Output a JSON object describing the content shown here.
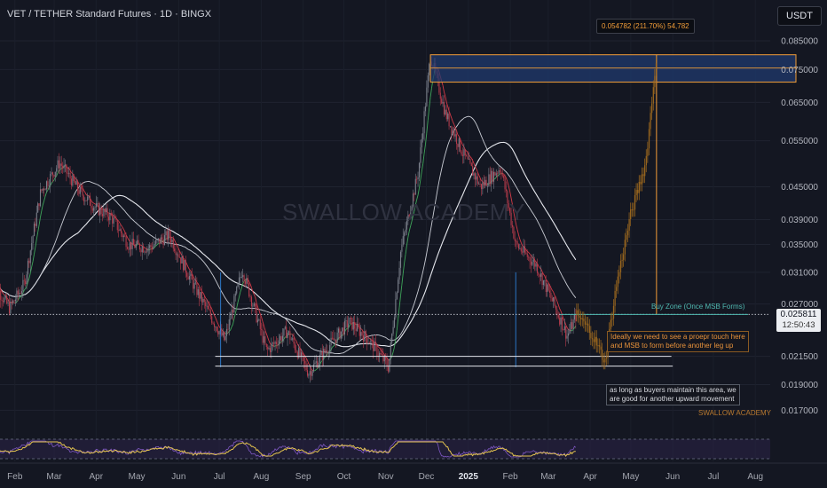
{
  "header": {
    "title": "VET / TETHER Standard Futures · 1D · BINGX",
    "currency": "USDT"
  },
  "colors": {
    "background": "#141722",
    "up_candle": "#7a7f8a",
    "down_candle": "#b53b4b",
    "ma_white": "#e6e8ee",
    "ma_red": "#d23a47",
    "ma_green": "#3fa55a",
    "projection": "#a06a1e",
    "target_zone": "#1f3a6e",
    "accent_orange": "#f29d38",
    "buy_zone": "#4fb8b0"
  },
  "chart_data": {
    "type": "candlestick",
    "symbol": "VET / TETHER Standard Futures",
    "timeframe": "1D",
    "exchange": "BINGX",
    "scale": "log",
    "yticks": [
      0.085,
      0.075,
      0.065,
      0.055,
      0.045,
      0.039,
      0.035,
      0.031,
      0.027,
      0.0215,
      0.019,
      0.017
    ],
    "ytick_labels": [
      "0.085000",
      "0.075000",
      "0.065000",
      "0.055000",
      "0.045000",
      "0.039000",
      "0.035000",
      "0.031000",
      "0.027000",
      "0.021500",
      "0.019000",
      "0.017000"
    ],
    "xticks": [
      "Feb",
      "Mar",
      "Apr",
      "May",
      "Jun",
      "Jul",
      "Aug",
      "Sep",
      "Oct",
      "Nov",
      "Dec",
      "2025",
      "Feb",
      "Mar",
      "Apr",
      "May",
      "Jun",
      "Jul",
      "Aug"
    ],
    "price_path": [
      {
        "x": "2024-01-15",
        "y": 0.03
      },
      {
        "x": "2024-01-28",
        "y": 0.0265
      },
      {
        "x": "2024-02-08",
        "y": 0.0295
      },
      {
        "x": "2024-02-20",
        "y": 0.044
      },
      {
        "x": "2024-03-05",
        "y": 0.05
      },
      {
        "x": "2024-03-20",
        "y": 0.044
      },
      {
        "x": "2024-04-01",
        "y": 0.041
      },
      {
        "x": "2024-04-12",
        "y": 0.0395
      },
      {
        "x": "2024-04-25",
        "y": 0.035
      },
      {
        "x": "2024-05-10",
        "y": 0.0345
      },
      {
        "x": "2024-05-25",
        "y": 0.0365
      },
      {
        "x": "2024-06-10",
        "y": 0.03
      },
      {
        "x": "2024-06-25",
        "y": 0.0255
      },
      {
        "x": "2024-07-05",
        "y": 0.023
      },
      {
        "x": "2024-07-18",
        "y": 0.0315
      },
      {
        "x": "2024-08-05",
        "y": 0.022
      },
      {
        "x": "2024-08-20",
        "y": 0.024
      },
      {
        "x": "2024-09-05",
        "y": 0.02
      },
      {
        "x": "2024-09-20",
        "y": 0.0225
      },
      {
        "x": "2024-10-05",
        "y": 0.025
      },
      {
        "x": "2024-10-20",
        "y": 0.023
      },
      {
        "x": "2024-11-03",
        "y": 0.0205
      },
      {
        "x": "2024-11-12",
        "y": 0.034
      },
      {
        "x": "2024-11-25",
        "y": 0.048
      },
      {
        "x": "2024-12-04",
        "y": 0.08
      },
      {
        "x": "2024-12-15",
        "y": 0.062
      },
      {
        "x": "2024-12-28",
        "y": 0.052
      },
      {
        "x": "2025-01-10",
        "y": 0.045
      },
      {
        "x": "2025-01-25",
        "y": 0.049
      },
      {
        "x": "2025-02-05",
        "y": 0.035
      },
      {
        "x": "2025-02-20",
        "y": 0.032
      },
      {
        "x": "2025-03-05",
        "y": 0.027
      },
      {
        "x": "2025-03-15",
        "y": 0.0235
      },
      {
        "x": "2025-03-22",
        "y": 0.0258
      }
    ],
    "projection_path": [
      {
        "x": "2025-03-22",
        "y": 0.0258
      },
      {
        "x": "2025-04-01",
        "y": 0.024
      },
      {
        "x": "2025-04-12",
        "y": 0.021
      },
      {
        "x": "2025-04-20",
        "y": 0.029
      },
      {
        "x": "2025-05-01",
        "y": 0.04
      },
      {
        "x": "2025-05-12",
        "y": 0.05
      },
      {
        "x": "2025-05-20",
        "y": 0.08
      }
    ],
    "target_zone": {
      "x_start": "2024-12-04",
      "x_end": "2025-08-31",
      "y_low": 0.071,
      "y_high": 0.08
    },
    "horizontal_levels": [
      {
        "y": 0.02581,
        "style": "dotted"
      },
      {
        "y": 0.0215,
        "x_start": "2024-06-28",
        "x_end": "2025-05-31"
      },
      {
        "y": 0.0206,
        "x_start": "2024-06-28",
        "x_end": "2025-06-01"
      }
    ],
    "annotations": {
      "measure": "0.054782 (211.70%) 54,782",
      "buy_zone": "Buy Zone (Once MSB Forms)",
      "ideal": [
        "Ideally we need to see a proepr touch here",
        "and MSB to form before another leg up"
      ],
      "buyers": [
        "as long as buyers maintain this area, we",
        "are good for another upward movement"
      ],
      "signature": "SWALLOW ACADEMY",
      "watermark": "SWALLOW ACADEMY"
    },
    "last_price": "0.025811",
    "countdown": "12:50:43"
  }
}
